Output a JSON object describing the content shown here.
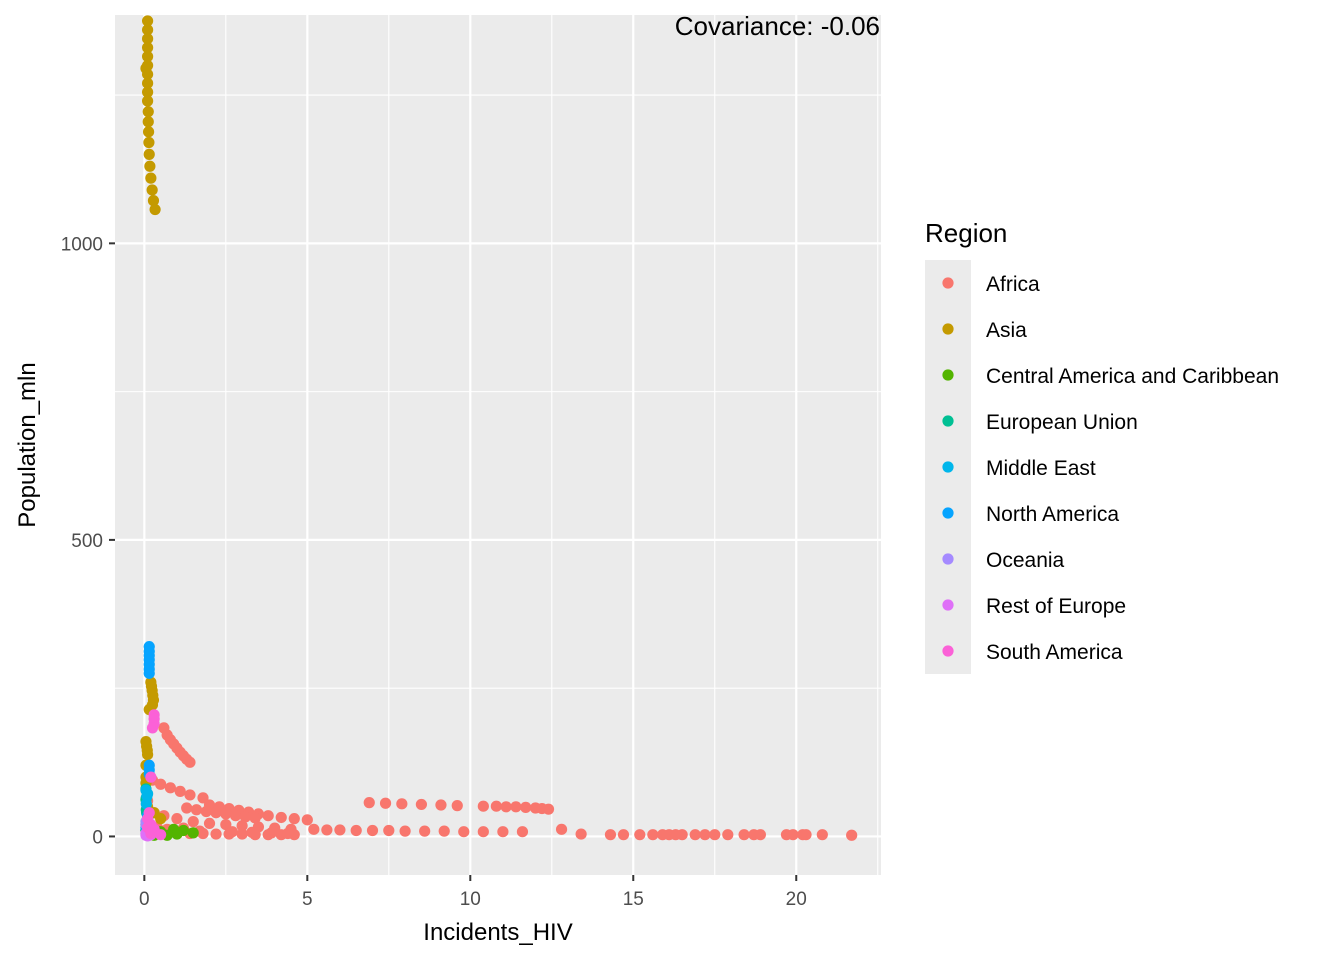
{
  "chart_data": {
    "type": "scatter",
    "xlabel": "Incidents_HIV",
    "ylabel": "Population_mln",
    "xlim": [
      -0.9,
      22.6
    ],
    "ylim": [
      -65,
      1385
    ],
    "x_ticks": [
      0,
      5,
      10,
      15,
      20
    ],
    "y_ticks": [
      0,
      500,
      1000
    ],
    "grid": true,
    "legend": {
      "title": "Region",
      "position": "right"
    },
    "annotation": "Covariance: -0.06",
    "series": [
      {
        "name": "Africa",
        "color": "#F8766D",
        "points": [
          [
            6.9,
            57
          ],
          [
            7.4,
            56
          ],
          [
            7.9,
            55
          ],
          [
            8.5,
            54
          ],
          [
            9.1,
            53
          ],
          [
            9.6,
            52
          ],
          [
            10.4,
            51
          ],
          [
            10.8,
            51
          ],
          [
            11.1,
            50
          ],
          [
            11.4,
            50
          ],
          [
            11.7,
            49
          ],
          [
            12.0,
            48
          ],
          [
            12.2,
            47
          ],
          [
            12.4,
            46
          ],
          [
            0.6,
            183
          ],
          [
            0.7,
            171
          ],
          [
            0.8,
            163
          ],
          [
            0.9,
            156
          ],
          [
            1.0,
            149
          ],
          [
            1.1,
            142
          ],
          [
            1.2,
            136
          ],
          [
            1.3,
            130
          ],
          [
            1.4,
            125
          ],
          [
            0.25,
            95
          ],
          [
            0.5,
            88
          ],
          [
            0.8,
            82
          ],
          [
            1.1,
            76
          ],
          [
            1.4,
            70
          ],
          [
            1.8,
            65
          ],
          [
            2.0,
            53
          ],
          [
            2.3,
            50
          ],
          [
            2.6,
            47
          ],
          [
            2.9,
            44
          ],
          [
            3.2,
            41
          ],
          [
            3.5,
            38
          ],
          [
            3.8,
            35
          ],
          [
            4.2,
            32
          ],
          [
            4.6,
            30
          ],
          [
            5.0,
            28
          ],
          [
            1.3,
            48
          ],
          [
            1.6,
            45
          ],
          [
            1.9,
            42
          ],
          [
            2.2,
            40
          ],
          [
            2.5,
            38
          ],
          [
            2.8,
            35
          ],
          [
            3.1,
            33
          ],
          [
            3.4,
            31
          ],
          [
            0.3,
            40
          ],
          [
            0.6,
            35
          ],
          [
            1.0,
            30
          ],
          [
            1.5,
            25
          ],
          [
            2.0,
            22
          ],
          [
            2.5,
            20
          ],
          [
            3.0,
            18
          ],
          [
            3.5,
            16
          ],
          [
            4.0,
            14
          ],
          [
            4.5,
            12
          ],
          [
            5.2,
            12
          ],
          [
            5.6,
            11
          ],
          [
            6.0,
            11
          ],
          [
            6.5,
            10
          ],
          [
            7.0,
            10
          ],
          [
            7.5,
            10
          ],
          [
            8.0,
            9
          ],
          [
            8.6,
            9
          ],
          [
            9.2,
            9
          ],
          [
            9.8,
            8
          ],
          [
            10.4,
            8
          ],
          [
            11.0,
            8
          ],
          [
            11.6,
            8
          ],
          [
            12.8,
            12
          ],
          [
            13.4,
            4
          ],
          [
            14.3,
            3
          ],
          [
            14.7,
            3
          ],
          [
            15.2,
            3
          ],
          [
            15.6,
            3
          ],
          [
            15.9,
            3
          ],
          [
            16.1,
            3
          ],
          [
            16.3,
            3
          ],
          [
            16.5,
            3
          ],
          [
            16.9,
            3
          ],
          [
            17.2,
            3
          ],
          [
            17.5,
            3
          ],
          [
            17.9,
            3
          ],
          [
            18.4,
            3
          ],
          [
            18.7,
            3
          ],
          [
            18.9,
            3
          ],
          [
            19.7,
            3
          ],
          [
            19.9,
            3
          ],
          [
            20.2,
            3
          ],
          [
            20.3,
            3
          ],
          [
            20.8,
            3
          ],
          [
            21.7,
            2
          ],
          [
            0.2,
            6
          ],
          [
            0.6,
            6
          ],
          [
            1.0,
            5
          ],
          [
            1.4,
            5
          ],
          [
            1.8,
            5
          ],
          [
            2.2,
            4
          ],
          [
            2.6,
            4
          ],
          [
            3.0,
            4
          ],
          [
            3.4,
            3
          ],
          [
            3.8,
            3
          ],
          [
            4.2,
            3
          ],
          [
            4.6,
            3
          ],
          [
            0.1,
            60
          ],
          [
            0.15,
            20
          ],
          [
            0.2,
            10
          ],
          [
            0.4,
            15
          ],
          [
            0.7,
            12
          ],
          [
            1.2,
            14
          ],
          [
            1.7,
            9
          ],
          [
            2.7,
            8
          ],
          [
            3.3,
            7
          ],
          [
            3.9,
            6
          ],
          [
            4.4,
            5
          ]
        ]
      },
      {
        "name": "Asia",
        "color": "#C49A00",
        "points": [
          [
            0.1,
            1375
          ],
          [
            0.1,
            1360
          ],
          [
            0.1,
            1345
          ],
          [
            0.1,
            1330
          ],
          [
            0.1,
            1315
          ],
          [
            0.1,
            1300
          ],
          [
            0.1,
            1285
          ],
          [
            0.1,
            1270
          ],
          [
            0.1,
            1255
          ],
          [
            0.1,
            1240
          ],
          [
            0.12,
            1222
          ],
          [
            0.12,
            1205
          ],
          [
            0.13,
            1188
          ],
          [
            0.14,
            1170
          ],
          [
            0.15,
            1150
          ],
          [
            0.17,
            1130
          ],
          [
            0.2,
            1110
          ],
          [
            0.24,
            1090
          ],
          [
            0.28,
            1072
          ],
          [
            0.33,
            1057
          ],
          [
            0.05,
            1295
          ],
          [
            0.2,
            260
          ],
          [
            0.22,
            253
          ],
          [
            0.24,
            246
          ],
          [
            0.26,
            238
          ],
          [
            0.28,
            230
          ],
          [
            0.25,
            222
          ],
          [
            0.15,
            214
          ],
          [
            0.05,
            160
          ],
          [
            0.07,
            152
          ],
          [
            0.09,
            145
          ],
          [
            0.1,
            138
          ],
          [
            0.05,
            120
          ],
          [
            0.05,
            100
          ],
          [
            0.05,
            90
          ],
          [
            0.05,
            20
          ],
          [
            0.05,
            10
          ],
          [
            0.3,
            40
          ],
          [
            0.5,
            30
          ],
          [
            0.1,
            50
          ]
        ]
      },
      {
        "name": "Central America and Caribbean",
        "color": "#53B400",
        "points": [
          [
            0.05,
            10
          ],
          [
            0.1,
            5
          ],
          [
            0.2,
            3
          ],
          [
            0.5,
            8
          ],
          [
            0.9,
            12
          ],
          [
            1.2,
            10
          ],
          [
            1.5,
            6
          ],
          [
            1.0,
            4
          ],
          [
            0.3,
            2
          ],
          [
            0.7,
            2
          ]
        ]
      },
      {
        "name": "European Union",
        "color": "#00C094",
        "points": [
          [
            0.05,
            80
          ],
          [
            0.05,
            62
          ],
          [
            0.06,
            65
          ],
          [
            0.07,
            40
          ],
          [
            0.06,
            45
          ],
          [
            0.05,
            10
          ],
          [
            0.08,
            5
          ]
        ]
      },
      {
        "name": "Middle East",
        "color": "#00B6EB",
        "points": [
          [
            0.05,
            78
          ],
          [
            0.1,
            72
          ],
          [
            0.08,
            68
          ],
          [
            0.06,
            55
          ],
          [
            0.1,
            30
          ],
          [
            0.05,
            15
          ]
        ]
      },
      {
        "name": "North America",
        "color": "#06A4FF",
        "points": [
          [
            0.15,
            320
          ],
          [
            0.15,
            312
          ],
          [
            0.15,
            305
          ],
          [
            0.15,
            298
          ],
          [
            0.15,
            290
          ],
          [
            0.15,
            282
          ],
          [
            0.15,
            275
          ],
          [
            0.15,
            120
          ],
          [
            0.15,
            112
          ],
          [
            0.15,
            105
          ],
          [
            0.1,
            35
          ]
        ]
      },
      {
        "name": "Oceania",
        "color": "#A58AFF",
        "points": [
          [
            0.05,
            25
          ],
          [
            0.05,
            20
          ],
          [
            0.05,
            5
          ],
          [
            0.1,
            4
          ]
        ]
      },
      {
        "name": "Rest of Europe",
        "color": "#DF70F8",
        "points": [
          [
            0.05,
            2
          ],
          [
            0.1,
            1
          ],
          [
            0.2,
            3
          ],
          [
            0.05,
            5
          ],
          [
            0.15,
            2
          ]
        ]
      },
      {
        "name": "South America",
        "color": "#FB61D7",
        "points": [
          [
            0.3,
            205
          ],
          [
            0.3,
            198
          ],
          [
            0.3,
            190
          ],
          [
            0.25,
            183
          ],
          [
            0.2,
            100
          ],
          [
            0.15,
            40
          ],
          [
            0.1,
            30
          ],
          [
            0.2,
            20
          ],
          [
            0.1,
            15
          ],
          [
            0.3,
            12
          ],
          [
            0.5,
            3
          ],
          [
            0.2,
            5
          ]
        ]
      }
    ]
  }
}
